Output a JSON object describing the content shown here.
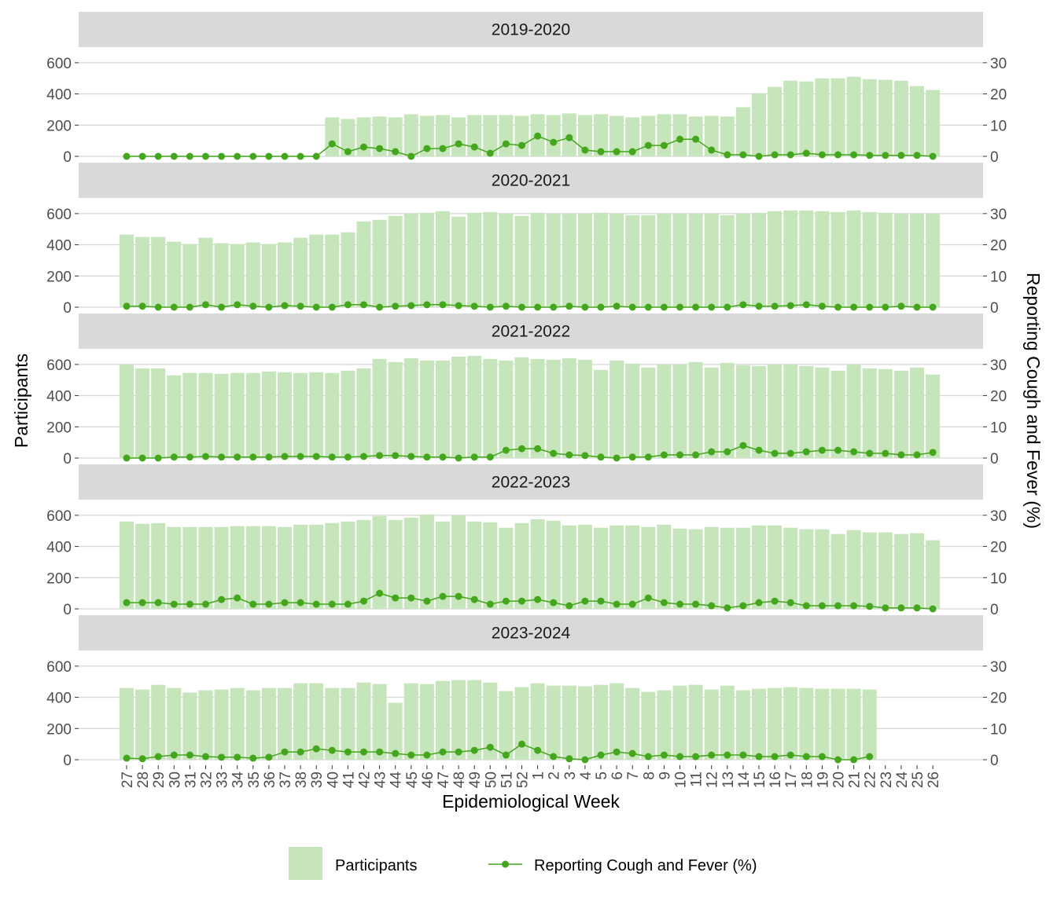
{
  "chart_data": {
    "type": "bar",
    "title": "",
    "xlabel": "Epidemiological Week",
    "ylabel": "Participants",
    "y2label": "Reporting Cough and Fever (%)",
    "categories": [
      "27",
      "28",
      "29",
      "30",
      "31",
      "32",
      "33",
      "34",
      "35",
      "36",
      "37",
      "38",
      "39",
      "40",
      "41",
      "42",
      "43",
      "44",
      "45",
      "46",
      "47",
      "48",
      "49",
      "50",
      "51",
      "52",
      "1",
      "2",
      "3",
      "4",
      "5",
      "6",
      "7",
      "8",
      "9",
      "10",
      "11",
      "12",
      "13",
      "14",
      "15",
      "16",
      "17",
      "18",
      "19",
      "20",
      "21",
      "22",
      "23",
      "24",
      "25",
      "26"
    ],
    "ylim": [
      0,
      700
    ],
    "y2lim": [
      0,
      35
    ],
    "yticks": [
      "0",
      "200",
      "400",
      "600"
    ],
    "y2ticks": [
      "0",
      "10",
      "20",
      "30"
    ],
    "grid": true,
    "legend_position": "bottom",
    "colors": {
      "bar": "#c7e5bb",
      "line": "#44a61c",
      "strip": "#d9d9d9",
      "grid": "#d6d6d6"
    },
    "legend": {
      "bar_label": "Participants",
      "line_label": "Reporting Cough and Fever (%)"
    },
    "panels": [
      {
        "label": "2019-2020",
        "participants": [
          null,
          null,
          null,
          null,
          null,
          null,
          null,
          null,
          null,
          null,
          null,
          null,
          null,
          250,
          240,
          250,
          255,
          250,
          270,
          260,
          265,
          250,
          265,
          265,
          265,
          260,
          270,
          265,
          275,
          265,
          270,
          260,
          250,
          260,
          270,
          270,
          255,
          260,
          255,
          315,
          405,
          445,
          485,
          480,
          500,
          500,
          510,
          495,
          490,
          485,
          450,
          425
        ],
        "cough_fever_pct": [
          0,
          0,
          0,
          0,
          0,
          0,
          0,
          0,
          0,
          0,
          0,
          0,
          0,
          4,
          1.5,
          3,
          2.5,
          1.5,
          0,
          2.5,
          2.5,
          4,
          3,
          1,
          4,
          3.5,
          6.5,
          4.5,
          6,
          2,
          1.5,
          1.5,
          1.5,
          3.5,
          3.5,
          5.5,
          5.5,
          2,
          0.5,
          0.5,
          0,
          0.5,
          0.5,
          1,
          0.5,
          0.5,
          0.5,
          0.3,
          0.3,
          0.3,
          0.3,
          0
        ]
      },
      {
        "label": "2020-2021",
        "participants": [
          465,
          450,
          450,
          420,
          405,
          445,
          410,
          405,
          415,
          405,
          415,
          445,
          465,
          465,
          480,
          550,
          560,
          585,
          600,
          605,
          615,
          580,
          605,
          610,
          600,
          585,
          605,
          600,
          600,
          600,
          605,
          600,
          590,
          590,
          600,
          600,
          600,
          600,
          590,
          600,
          605,
          615,
          620,
          620,
          615,
          610,
          620,
          610,
          605,
          600,
          600,
          600
        ],
        "cough_fever_pct": [
          0.3,
          0.3,
          0,
          0,
          0,
          0.8,
          0,
          0.8,
          0.3,
          0,
          0.5,
          0.3,
          0,
          0,
          0.8,
          0.8,
          0,
          0.3,
          0.5,
          0.8,
          0.8,
          0.5,
          0.3,
          0,
          0.3,
          0,
          0,
          0,
          0.3,
          0,
          0,
          0.3,
          0,
          0,
          0,
          0,
          0,
          0,
          0,
          0.8,
          0.3,
          0.3,
          0.5,
          0.8,
          0.3,
          0,
          0,
          0,
          0,
          0.3,
          0,
          0
        ]
      },
      {
        "label": "2021-2022",
        "participants": [
          600,
          575,
          575,
          530,
          545,
          545,
          540,
          545,
          545,
          555,
          550,
          545,
          550,
          545,
          560,
          575,
          635,
          615,
          640,
          625,
          625,
          650,
          655,
          635,
          625,
          645,
          635,
          630,
          640,
          630,
          565,
          625,
          605,
          580,
          600,
          600,
          615,
          580,
          610,
          595,
          590,
          600,
          600,
          590,
          580,
          560,
          600,
          575,
          570,
          560,
          580,
          535
        ],
        "cough_fever_pct": [
          0,
          0,
          0,
          0.3,
          0.3,
          0.5,
          0.3,
          0.3,
          0.3,
          0.3,
          0.5,
          0.5,
          0.5,
          0.3,
          0.3,
          0.5,
          0.8,
          0.8,
          0.5,
          0.3,
          0.3,
          0,
          0.3,
          0.3,
          2.5,
          3,
          3,
          1.5,
          1,
          0.8,
          0.3,
          0,
          0.3,
          0.3,
          1,
          1,
          1,
          2,
          2,
          4,
          2.5,
          1.5,
          1.5,
          2,
          2.5,
          2.5,
          2,
          1.5,
          1.5,
          1,
          1,
          1.8
        ]
      },
      {
        "label": "2022-2023",
        "participants": [
          560,
          545,
          550,
          525,
          525,
          525,
          525,
          530,
          530,
          530,
          525,
          540,
          540,
          550,
          560,
          570,
          595,
          570,
          585,
          605,
          560,
          600,
          560,
          555,
          520,
          550,
          575,
          565,
          535,
          540,
          520,
          535,
          535,
          525,
          540,
          515,
          510,
          525,
          520,
          520,
          535,
          535,
          520,
          510,
          510,
          480,
          505,
          490,
          490,
          480,
          485,
          440
        ],
        "cough_fever_pct": [
          2,
          2,
          2,
          1.5,
          1.5,
          1.5,
          3,
          3.5,
          1.5,
          1.5,
          2,
          2,
          1.5,
          1.5,
          1.5,
          2.5,
          5,
          3.5,
          3.5,
          2.5,
          4,
          4,
          3,
          1.5,
          2.5,
          2.5,
          3,
          2,
          1,
          2.5,
          2.5,
          1.5,
          1.5,
          3.5,
          2,
          1.5,
          1.5,
          1,
          0.3,
          1,
          2,
          2.5,
          2,
          1,
          1,
          1,
          1,
          0.8,
          0.3,
          0.3,
          0.3,
          0
        ]
      },
      {
        "label": "2023-2024",
        "participants": [
          460,
          450,
          480,
          460,
          430,
          445,
          450,
          460,
          445,
          460,
          460,
          490,
          490,
          460,
          460,
          495,
          485,
          365,
          490,
          485,
          505,
          510,
          510,
          495,
          440,
          465,
          490,
          475,
          475,
          470,
          480,
          490,
          460,
          435,
          445,
          475,
          480,
          450,
          475,
          445,
          455,
          460,
          465,
          460,
          455,
          455,
          455,
          450,
          null,
          null,
          null,
          null
        ],
        "cough_fever_pct": [
          0.5,
          0.3,
          1,
          1.5,
          1.5,
          1,
          0.8,
          0.8,
          0.5,
          0.8,
          2.5,
          2.5,
          3.5,
          3,
          2.5,
          2.5,
          2.5,
          2,
          1.5,
          1.5,
          2.5,
          2.5,
          3,
          4,
          1.5,
          5,
          3,
          1,
          0.3,
          0,
          1.5,
          2.5,
          2,
          1,
          1.5,
          1,
          1,
          1.5,
          1.5,
          1.5,
          1,
          1,
          1.5,
          1,
          1,
          0,
          0,
          1,
          null,
          null,
          null,
          null
        ]
      }
    ]
  }
}
